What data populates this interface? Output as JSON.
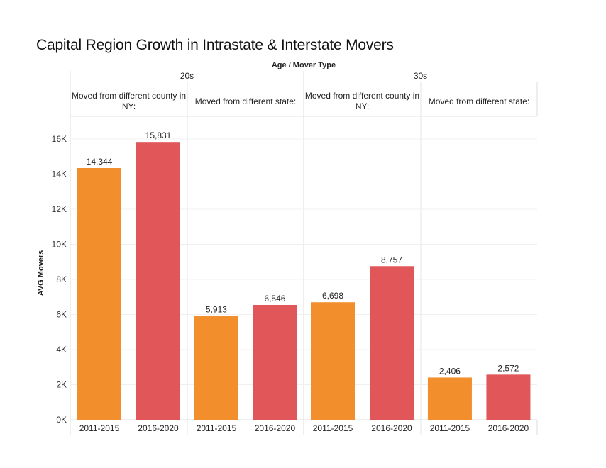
{
  "chart_data": {
    "type": "bar",
    "title": "Capital Region Growth in Intrastate & Interstate Movers",
    "column_header_title": "Age / Mover Type",
    "ylabel": "AVG Movers",
    "xlabel": "",
    "ylim": [
      0,
      17000
    ],
    "yticks": [
      0,
      2000,
      4000,
      6000,
      8000,
      10000,
      12000,
      14000,
      16000
    ],
    "ytick_labels": [
      "0K",
      "2K",
      "4K",
      "6K",
      "8K",
      "10K",
      "12K",
      "14K",
      "16K"
    ],
    "grid": true,
    "legend": "none",
    "colors": {
      "2011-2015": "#F28E2B",
      "2016-2020": "#E15759"
    },
    "age_groups": [
      {
        "label": "20s",
        "mover_types": [
          {
            "label": "Moved from different county in NY:",
            "categories": [
              "2011-2015",
              "2016-2020"
            ],
            "values": [
              14344,
              15831
            ],
            "value_labels": [
              "14,344",
              "15,831"
            ]
          },
          {
            "label": "Moved from different state:",
            "categories": [
              "2011-2015",
              "2016-2020"
            ],
            "values": [
              5913,
              6546
            ],
            "value_labels": [
              "5,913",
              "6,546"
            ]
          }
        ]
      },
      {
        "label": "30s",
        "mover_types": [
          {
            "label": "Moved from different county in NY:",
            "categories": [
              "2011-2015",
              "2016-2020"
            ],
            "values": [
              6698,
              8757
            ],
            "value_labels": [
              "6,698",
              "8,757"
            ]
          },
          {
            "label": "Moved from different state:",
            "categories": [
              "2011-2015",
              "2016-2020"
            ],
            "values": [
              2406,
              2572
            ],
            "value_labels": [
              "2,406",
              "2,572"
            ]
          }
        ]
      }
    ]
  }
}
